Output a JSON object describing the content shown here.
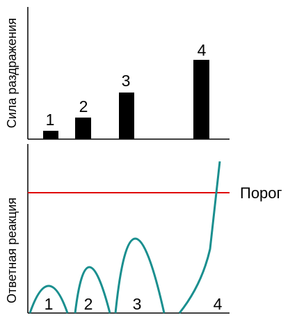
{
  "stimulus_panel": {
    "axis_label": "Сила раздражения",
    "bar_labels": [
      "1",
      "2",
      "3",
      "4"
    ]
  },
  "response_panel": {
    "axis_label": "Ответная реакция",
    "threshold_label": "Порог",
    "curve_labels": [
      "1",
      "2",
      "3",
      "4"
    ]
  }
}
